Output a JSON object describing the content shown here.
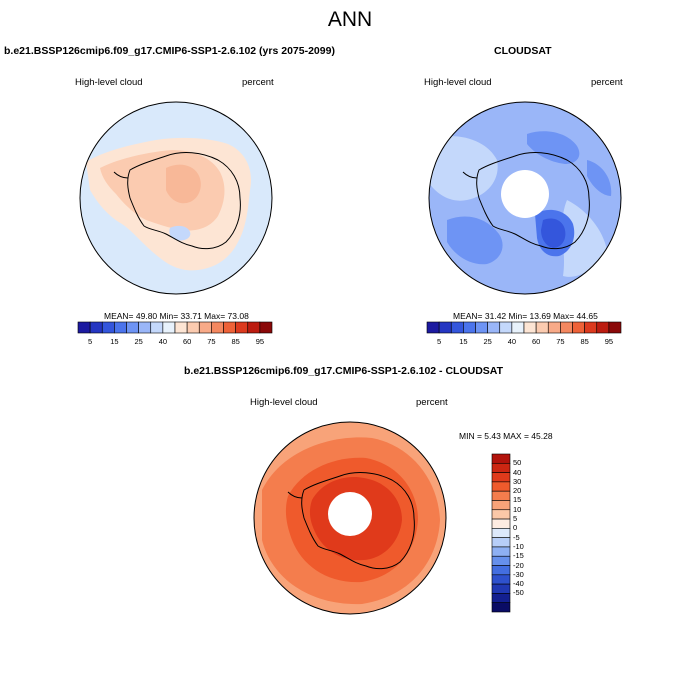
{
  "figure": {
    "season": "ANN"
  },
  "panels": {
    "left": {
      "title": "b.e21.BSSP126cmip6.f09_g17.CMIP6-SSP1-2.6.102 (yrs 2075-2099)",
      "variable": "High-level cloud",
      "units": "percent",
      "stats": "MEAN= 49.80  Min= 33.71  Max= 73.08"
    },
    "right": {
      "title": "CLOUDSAT",
      "variable": "High-level cloud",
      "units": "percent",
      "stats": "MEAN= 31.42  Min= 13.69  Max= 44.65"
    },
    "diff": {
      "title": "b.e21.BSSP126cmip6.f09_g17.CMIP6-SSP1-2.6.102 - CLOUDSAT",
      "variable": "High-level cloud",
      "units": "percent",
      "stats": "MIN =  5.43 MAX = 45.28"
    }
  },
  "colorbars": {
    "abs": {
      "colors": [
        "#1c1aa0",
        "#2536c2",
        "#3456dc",
        "#4b74ec",
        "#6e94f4",
        "#9ab6f8",
        "#c4d8fb",
        "#e8f2fc",
        "#fde5d4",
        "#fbcbb0",
        "#f8aa88",
        "#f48860",
        "#ee6238",
        "#dc3a1e",
        "#bc1c10",
        "#8a0808"
      ],
      "ticks": [
        "5",
        "15",
        "25",
        "40",
        "60",
        "75",
        "85",
        "95"
      ]
    },
    "diff": {
      "colors": [
        "#b2130c",
        "#cc2612",
        "#e03a1b",
        "#ef5a2c",
        "#f47d4d",
        "#f8a379",
        "#fbc8a8",
        "#feece2",
        "#dde9fb",
        "#b7cef8",
        "#8eb0f3",
        "#6690ec",
        "#436ee0",
        "#2e51cd",
        "#2038b3",
        "#131f90",
        "#0a0c65"
      ],
      "ticks": [
        "50",
        "40",
        "30",
        "20",
        "15",
        "10",
        "5",
        "0",
        "-5",
        "-10",
        "-15",
        "-20",
        "-30",
        "-40",
        "-50"
      ]
    }
  }
}
